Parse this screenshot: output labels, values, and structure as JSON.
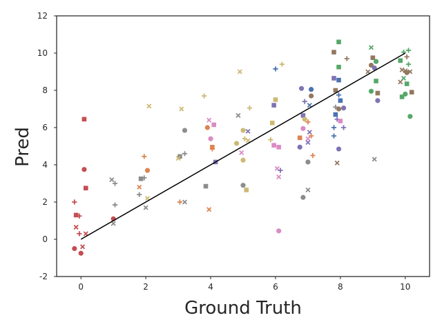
{
  "chart_data": {
    "type": "scatter",
    "title": "",
    "xlabel": "Ground Truth",
    "ylabel": "Pred",
    "xlim": [
      -0.75,
      10.75
    ],
    "ylim": [
      -2,
      12
    ],
    "xticks": [
      0,
      2,
      4,
      6,
      8,
      10
    ],
    "yticks": [
      -2,
      0,
      2,
      4,
      6,
      8,
      10,
      12
    ],
    "grid": false,
    "legend": "none",
    "reference_line": {
      "x": [
        0,
        10
      ],
      "y": [
        0,
        10
      ],
      "color": "#000000"
    },
    "colors": {
      "blue": "#4C72B0",
      "orange": "#DD8452",
      "green": "#55A868",
      "red": "#C44E52",
      "purple": "#8172B3",
      "brown": "#937860",
      "pink": "#DA8BC3",
      "gray": "#8C8C8C",
      "olive": "#CCB974"
    },
    "points": [
      {
        "x": -0.2,
        "y": -0.5,
        "c": "red",
        "m": "circle"
      },
      {
        "x": 0.0,
        "y": -0.75,
        "c": "red",
        "m": "circle"
      },
      {
        "x": 0.1,
        "y": 3.75,
        "c": "red",
        "m": "circle"
      },
      {
        "x": 1.0,
        "y": 1.1,
        "c": "red",
        "m": "circle"
      },
      {
        "x": 0.1,
        "y": 6.45,
        "c": "red",
        "m": "square"
      },
      {
        "x": 0.15,
        "y": 2.75,
        "c": "red",
        "m": "square"
      },
      {
        "x": -0.15,
        "y": 1.3,
        "c": "red",
        "m": "square"
      },
      {
        "x": -0.2,
        "y": 2.0,
        "c": "red",
        "m": "plus"
      },
      {
        "x": -0.05,
        "y": 1.25,
        "c": "red",
        "m": "plus"
      },
      {
        "x": -0.05,
        "y": 0.3,
        "c": "red",
        "m": "plus"
      },
      {
        "x": -0.15,
        "y": 0.65,
        "c": "red",
        "m": "x"
      },
      {
        "x": 0.05,
        "y": -0.4,
        "c": "red",
        "m": "x"
      },
      {
        "x": 0.15,
        "y": 0.3,
        "c": "red",
        "m": "x"
      },
      {
        "x": 1.0,
        "y": 0.85,
        "c": "gray",
        "m": "x"
      },
      {
        "x": 0.95,
        "y": 3.2,
        "c": "gray",
        "m": "x"
      },
      {
        "x": 1.05,
        "y": 3.0,
        "c": "gray",
        "m": "plus"
      },
      {
        "x": 1.05,
        "y": 1.85,
        "c": "gray",
        "m": "plus"
      },
      {
        "x": 1.85,
        "y": 3.25,
        "c": "gray",
        "m": "square"
      },
      {
        "x": 1.95,
        "y": 3.3,
        "c": "gray",
        "m": "plus"
      },
      {
        "x": 1.8,
        "y": 2.4,
        "c": "gray",
        "m": "plus"
      },
      {
        "x": 2.0,
        "y": 1.7,
        "c": "gray",
        "m": "x"
      },
      {
        "x": 2.05,
        "y": 3.7,
        "c": "orange",
        "m": "circle"
      },
      {
        "x": 1.8,
        "y": 2.8,
        "c": "orange",
        "m": "x"
      },
      {
        "x": 1.95,
        "y": 4.45,
        "c": "orange",
        "m": "plus"
      },
      {
        "x": 2.05,
        "y": 2.2,
        "c": "olive",
        "m": "x"
      },
      {
        "x": 2.1,
        "y": 7.15,
        "c": "olive",
        "m": "x"
      },
      {
        "x": 3.2,
        "y": 5.85,
        "c": "gray",
        "m": "circle"
      },
      {
        "x": 3.2,
        "y": 4.6,
        "c": "gray",
        "m": "plus"
      },
      {
        "x": 3.05,
        "y": 4.45,
        "c": "gray",
        "m": "square"
      },
      {
        "x": 3.2,
        "y": 2.0,
        "c": "gray",
        "m": "x"
      },
      {
        "x": 3.05,
        "y": 2.0,
        "c": "orange",
        "m": "plus"
      },
      {
        "x": 3.1,
        "y": 7.0,
        "c": "olive",
        "m": "x"
      },
      {
        "x": 3.0,
        "y": 4.35,
        "c": "olive",
        "m": "x"
      },
      {
        "x": 3.8,
        "y": 7.7,
        "c": "olive",
        "m": "plus"
      },
      {
        "x": 3.9,
        "y": 6.0,
        "c": "orange",
        "m": "circle"
      },
      {
        "x": 3.95,
        "y": 1.6,
        "c": "orange",
        "m": "x"
      },
      {
        "x": 4.05,
        "y": 4.95,
        "c": "orange",
        "m": "square"
      },
      {
        "x": 4.05,
        "y": 4.85,
        "c": "orange",
        "m": "plus"
      },
      {
        "x": 3.85,
        "y": 2.85,
        "c": "gray",
        "m": "square"
      },
      {
        "x": 4.1,
        "y": 6.15,
        "c": "pink",
        "m": "square"
      },
      {
        "x": 3.95,
        "y": 6.4,
        "c": "pink",
        "m": "x"
      },
      {
        "x": 4.0,
        "y": 5.4,
        "c": "pink",
        "m": "circle"
      },
      {
        "x": 4.15,
        "y": 4.15,
        "c": "purple",
        "m": "square"
      },
      {
        "x": 4.9,
        "y": 9.0,
        "c": "olive",
        "m": "x"
      },
      {
        "x": 4.85,
        "y": 6.65,
        "c": "gray",
        "m": "x"
      },
      {
        "x": 5.0,
        "y": 5.85,
        "c": "olive",
        "m": "circle"
      },
      {
        "x": 4.8,
        "y": 5.15,
        "c": "olive",
        "m": "circle"
      },
      {
        "x": 5.0,
        "y": 4.25,
        "c": "olive",
        "m": "circle"
      },
      {
        "x": 5.05,
        "y": 5.4,
        "c": "olive",
        "m": "plus"
      },
      {
        "x": 5.2,
        "y": 7.05,
        "c": "olive",
        "m": "plus"
      },
      {
        "x": 5.15,
        "y": 5.8,
        "c": "purple",
        "m": "x"
      },
      {
        "x": 4.95,
        "y": 4.65,
        "c": "pink",
        "m": "x"
      },
      {
        "x": 5.0,
        "y": 2.9,
        "c": "gray",
        "m": "circle"
      },
      {
        "x": 5.1,
        "y": 2.65,
        "c": "olive",
        "m": "square"
      },
      {
        "x": 5.15,
        "y": 5.3,
        "c": "olive",
        "m": "x"
      },
      {
        "x": 6.0,
        "y": 9.15,
        "c": "blue",
        "m": "plus"
      },
      {
        "x": 6.2,
        "y": 9.4,
        "c": "olive",
        "m": "plus"
      },
      {
        "x": 6.0,
        "y": 7.5,
        "c": "olive",
        "m": "square"
      },
      {
        "x": 5.95,
        "y": 7.2,
        "c": "purple",
        "m": "square"
      },
      {
        "x": 5.9,
        "y": 6.25,
        "c": "olive",
        "m": "square"
      },
      {
        "x": 5.85,
        "y": 5.35,
        "c": "olive",
        "m": "plus"
      },
      {
        "x": 5.95,
        "y": 5.05,
        "c": "pink",
        "m": "square"
      },
      {
        "x": 6.1,
        "y": 4.95,
        "c": "pink",
        "m": "square"
      },
      {
        "x": 6.05,
        "y": 3.8,
        "c": "pink",
        "m": "x"
      },
      {
        "x": 6.1,
        "y": 3.35,
        "c": "pink",
        "m": "x"
      },
      {
        "x": 6.1,
        "y": 0.45,
        "c": "pink",
        "m": "circle"
      },
      {
        "x": 6.15,
        "y": 3.7,
        "c": "purple",
        "m": "plus"
      },
      {
        "x": 6.8,
        "y": 8.1,
        "c": "purple",
        "m": "circle"
      },
      {
        "x": 7.1,
        "y": 8.05,
        "c": "blue",
        "m": "circle"
      },
      {
        "x": 7.1,
        "y": 7.7,
        "c": "brown",
        "m": "circle"
      },
      {
        "x": 6.9,
        "y": 7.4,
        "c": "purple",
        "m": "plus"
      },
      {
        "x": 7.05,
        "y": 7.2,
        "c": "blue",
        "m": "x"
      },
      {
        "x": 6.85,
        "y": 6.65,
        "c": "purple",
        "m": "square"
      },
      {
        "x": 6.9,
        "y": 6.45,
        "c": "olive",
        "m": "circle"
      },
      {
        "x": 7.0,
        "y": 6.3,
        "c": "orange",
        "m": "plus"
      },
      {
        "x": 6.85,
        "y": 5.95,
        "c": "pink",
        "m": "circle"
      },
      {
        "x": 7.05,
        "y": 5.75,
        "c": "purple",
        "m": "x"
      },
      {
        "x": 7.1,
        "y": 5.55,
        "c": "orange",
        "m": "plus"
      },
      {
        "x": 6.75,
        "y": 5.45,
        "c": "orange",
        "m": "square"
      },
      {
        "x": 7.0,
        "y": 5.4,
        "c": "pink",
        "m": "x"
      },
      {
        "x": 7.0,
        "y": 5.2,
        "c": "purple",
        "m": "x"
      },
      {
        "x": 6.75,
        "y": 4.95,
        "c": "purple",
        "m": "circle"
      },
      {
        "x": 7.15,
        "y": 4.5,
        "c": "orange",
        "m": "plus"
      },
      {
        "x": 7.0,
        "y": 4.15,
        "c": "gray",
        "m": "circle"
      },
      {
        "x": 7.0,
        "y": 2.65,
        "c": "gray",
        "m": "x"
      },
      {
        "x": 6.85,
        "y": 2.25,
        "c": "gray",
        "m": "circle"
      },
      {
        "x": 7.95,
        "y": 10.6,
        "c": "green",
        "m": "square"
      },
      {
        "x": 7.8,
        "y": 10.05,
        "c": "brown",
        "m": "square"
      },
      {
        "x": 8.2,
        "y": 9.7,
        "c": "brown",
        "m": "plus"
      },
      {
        "x": 7.95,
        "y": 9.25,
        "c": "green",
        "m": "square"
      },
      {
        "x": 7.8,
        "y": 8.65,
        "c": "purple",
        "m": "square"
      },
      {
        "x": 7.95,
        "y": 8.55,
        "c": "blue",
        "m": "square"
      },
      {
        "x": 7.85,
        "y": 8.0,
        "c": "brown",
        "m": "square"
      },
      {
        "x": 7.95,
        "y": 7.75,
        "c": "blue",
        "m": "plus"
      },
      {
        "x": 8.0,
        "y": 7.45,
        "c": "blue",
        "m": "square"
      },
      {
        "x": 7.85,
        "y": 7.1,
        "c": "gray",
        "m": "plus"
      },
      {
        "x": 7.95,
        "y": 7.0,
        "c": "brown",
        "m": "circle"
      },
      {
        "x": 8.1,
        "y": 7.05,
        "c": "purple",
        "m": "circle"
      },
      {
        "x": 7.85,
        "y": 6.7,
        "c": "blue",
        "m": "square"
      },
      {
        "x": 7.9,
        "y": 6.45,
        "c": "purple",
        "m": "plus"
      },
      {
        "x": 8.0,
        "y": 6.35,
        "c": "pink",
        "m": "square"
      },
      {
        "x": 7.8,
        "y": 6.0,
        "c": "blue",
        "m": "plus"
      },
      {
        "x": 8.1,
        "y": 6.0,
        "c": "purple",
        "m": "plus"
      },
      {
        "x": 7.8,
        "y": 5.55,
        "c": "blue",
        "m": "plus"
      },
      {
        "x": 7.95,
        "y": 4.85,
        "c": "purple",
        "m": "circle"
      },
      {
        "x": 7.9,
        "y": 4.1,
        "c": "brown",
        "m": "x"
      },
      {
        "x": 8.95,
        "y": 10.3,
        "c": "green",
        "m": "x"
      },
      {
        "x": 9.0,
        "y": 9.75,
        "c": "brown",
        "m": "square"
      },
      {
        "x": 9.1,
        "y": 9.55,
        "c": "green",
        "m": "circle"
      },
      {
        "x": 8.95,
        "y": 9.35,
        "c": "brown",
        "m": "circle"
      },
      {
        "x": 9.05,
        "y": 9.2,
        "c": "purple",
        "m": "circle"
      },
      {
        "x": 8.85,
        "y": 9.0,
        "c": "brown",
        "m": "x"
      },
      {
        "x": 9.1,
        "y": 8.5,
        "c": "green",
        "m": "square"
      },
      {
        "x": 8.95,
        "y": 7.95,
        "c": "green",
        "m": "circle"
      },
      {
        "x": 9.15,
        "y": 7.85,
        "c": "brown",
        "m": "square"
      },
      {
        "x": 9.15,
        "y": 7.45,
        "c": "purple",
        "m": "circle"
      },
      {
        "x": 9.05,
        "y": 4.3,
        "c": "gray",
        "m": "x"
      },
      {
        "x": 10.1,
        "y": 10.15,
        "c": "green",
        "m": "plus"
      },
      {
        "x": 9.95,
        "y": 10.05,
        "c": "green",
        "m": "plus"
      },
      {
        "x": 10.05,
        "y": 9.8,
        "c": "brown",
        "m": "plus"
      },
      {
        "x": 9.85,
        "y": 9.6,
        "c": "green",
        "m": "square"
      },
      {
        "x": 10.1,
        "y": 9.4,
        "c": "green",
        "m": "plus"
      },
      {
        "x": 9.9,
        "y": 9.1,
        "c": "brown",
        "m": "x"
      },
      {
        "x": 10.0,
        "y": 9.05,
        "c": "brown",
        "m": "x"
      },
      {
        "x": 10.15,
        "y": 9.0,
        "c": "brown",
        "m": "x"
      },
      {
        "x": 10.05,
        "y": 8.95,
        "c": "brown",
        "m": "circle"
      },
      {
        "x": 9.95,
        "y": 8.65,
        "c": "green",
        "m": "x"
      },
      {
        "x": 9.85,
        "y": 8.45,
        "c": "brown",
        "m": "x"
      },
      {
        "x": 10.05,
        "y": 8.35,
        "c": "green",
        "m": "square"
      },
      {
        "x": 10.2,
        "y": 7.9,
        "c": "brown",
        "m": "square"
      },
      {
        "x": 10.0,
        "y": 7.8,
        "c": "green",
        "m": "circle"
      },
      {
        "x": 9.9,
        "y": 7.65,
        "c": "green",
        "m": "square"
      },
      {
        "x": 10.15,
        "y": 6.6,
        "c": "green",
        "m": "circle"
      }
    ]
  }
}
